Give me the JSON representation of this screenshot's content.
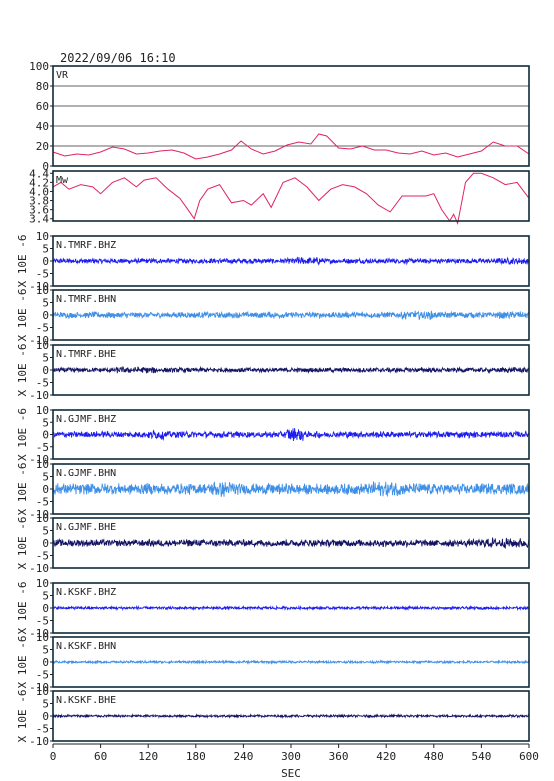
{
  "title": "2022/09/06  16:10",
  "xlabel": "SEC",
  "chart_data": {
    "type": "line",
    "title": "2022/09/06  16:10",
    "xlabel": "SEC",
    "xlim": [
      0,
      600
    ],
    "xticks": [
      0,
      60,
      120,
      180,
      240,
      300,
      360,
      420,
      480,
      540,
      600
    ],
    "panels": [
      {
        "label": "VR",
        "kind": "trend",
        "color": "#e0245e",
        "ylim": [
          0,
          100
        ],
        "yticks": [
          0,
          20,
          40,
          60,
          80,
          100
        ],
        "grid": true,
        "x": [
          0,
          15,
          30,
          45,
          60,
          75,
          90,
          105,
          120,
          135,
          150,
          165,
          180,
          195,
          210,
          225,
          237,
          250,
          265,
          280,
          295,
          310,
          325,
          335,
          345,
          360,
          375,
          390,
          405,
          420,
          435,
          450,
          465,
          480,
          495,
          510,
          525,
          540,
          555,
          570,
          585,
          600
        ],
        "y": [
          14,
          10,
          12,
          11,
          14,
          19,
          17,
          12,
          13,
          15,
          16,
          13,
          7,
          9,
          12,
          16,
          25,
          17,
          12,
          15,
          21,
          24,
          22,
          32,
          30,
          18,
          17,
          20,
          16,
          16,
          13,
          12,
          15,
          11,
          13,
          9,
          12,
          15,
          24,
          20,
          20,
          12
        ]
      },
      {
        "label": "Mw",
        "kind": "trend",
        "color": "#e0245e",
        "ylim": [
          3.35,
          4.45
        ],
        "yticks": [
          3.4,
          3.6,
          3.8,
          4.0,
          4.2,
          4.4
        ],
        "ytick_labels": [
          "3.4",
          "3.6",
          "3.8",
          "4.0",
          "4.2",
          "4.4"
        ],
        "x": [
          0,
          10,
          20,
          35,
          50,
          60,
          75,
          90,
          105,
          115,
          130,
          145,
          160,
          170,
          178,
          185,
          195,
          210,
          225,
          240,
          250,
          265,
          275,
          290,
          305,
          320,
          335,
          350,
          365,
          380,
          395,
          410,
          425,
          440,
          455,
          470,
          480,
          490,
          500,
          505,
          510,
          515,
          520,
          530,
          540,
          555,
          570,
          585,
          600
        ],
        "y": [
          4.1,
          4.2,
          4.05,
          4.15,
          4.1,
          3.95,
          4.2,
          4.3,
          4.1,
          4.25,
          4.3,
          4.05,
          3.85,
          3.6,
          3.4,
          3.8,
          4.05,
          4.15,
          3.75,
          3.8,
          3.7,
          3.95,
          3.65,
          4.2,
          4.3,
          4.1,
          3.8,
          4.05,
          4.15,
          4.1,
          3.95,
          3.7,
          3.55,
          3.9,
          3.9,
          3.9,
          3.95,
          3.6,
          3.35,
          3.5,
          3.3,
          3.75,
          4.2,
          4.4,
          4.4,
          4.3,
          4.15,
          4.2,
          3.85
        ]
      },
      {
        "label": "N.TMRF.BHZ",
        "kind": "wave",
        "color": "#1c1cf0",
        "ylim": [
          -10,
          10
        ],
        "yticks": [
          -10,
          -5,
          0,
          5,
          10
        ],
        "amplitude": 1.1,
        "bursts": [
          [
            300,
            340,
            1.5
          ],
          [
            560,
            600,
            1.3
          ]
        ]
      },
      {
        "label": "N.TMRF.BHN",
        "kind": "wave",
        "color": "#3f8fe6",
        "ylim": [
          -10,
          10
        ],
        "yticks": [
          -10,
          -5,
          0,
          5,
          10
        ],
        "amplitude": 1.3,
        "bursts": [
          [
            440,
            480,
            1.5
          ],
          [
            560,
            600,
            1.2
          ]
        ]
      },
      {
        "label": "N.TMRF.BHE",
        "kind": "wave",
        "color": "#141464",
        "ylim": [
          -10,
          10
        ],
        "yticks": [
          -10,
          -5,
          0,
          5,
          10
        ],
        "amplitude": 1.0,
        "bursts": [
          [
            80,
            130,
            1.4
          ],
          [
            560,
            600,
            1.2
          ]
        ]
      },
      {
        "label": "N.GJMF.BHZ",
        "kind": "wave",
        "color": "#1c1cf0",
        "ylim": [
          -10,
          10
        ],
        "yticks": [
          -10,
          -5,
          0,
          5,
          10
        ],
        "amplitude": 1.4,
        "bursts": [
          [
            295,
            315,
            2.2
          ],
          [
            120,
            140,
            1.5
          ]
        ]
      },
      {
        "label": "N.GJMF.BHN",
        "kind": "wave",
        "color": "#3f8fe6",
        "ylim": [
          -10,
          10
        ],
        "yticks": [
          -10,
          -5,
          0,
          5,
          10
        ],
        "amplitude": 2.4,
        "bursts": [
          [
            200,
            230,
            1.4
          ],
          [
            400,
            440,
            1.3
          ]
        ]
      },
      {
        "label": "N.GJMF.BHE",
        "kind": "wave",
        "color": "#141464",
        "ylim": [
          -10,
          10
        ],
        "yticks": [
          -10,
          -5,
          0,
          5,
          10
        ],
        "amplitude": 1.5,
        "bursts": [
          [
            540,
            600,
            1.4
          ]
        ]
      },
      {
        "label": "N.KSKF.BHZ",
        "kind": "wave",
        "color": "#1c1cf0",
        "ylim": [
          -10,
          10
        ],
        "yticks": [
          -10,
          -5,
          0,
          5,
          10
        ],
        "amplitude": 0.6,
        "bursts": []
      },
      {
        "label": "N.KSKF.BHN",
        "kind": "wave",
        "color": "#3f8fe6",
        "ylim": [
          -10,
          10
        ],
        "yticks": [
          -10,
          -5,
          0,
          5,
          10
        ],
        "amplitude": 0.5,
        "bursts": []
      },
      {
        "label": "N.KSKF.BHE",
        "kind": "wave",
        "color": "#141464",
        "ylim": [
          -10,
          10
        ],
        "yticks": [
          -10,
          -5,
          0,
          5,
          10
        ],
        "amplitude": 0.5,
        "bursts": []
      }
    ],
    "wave_ylabel": "X 10E -6"
  }
}
